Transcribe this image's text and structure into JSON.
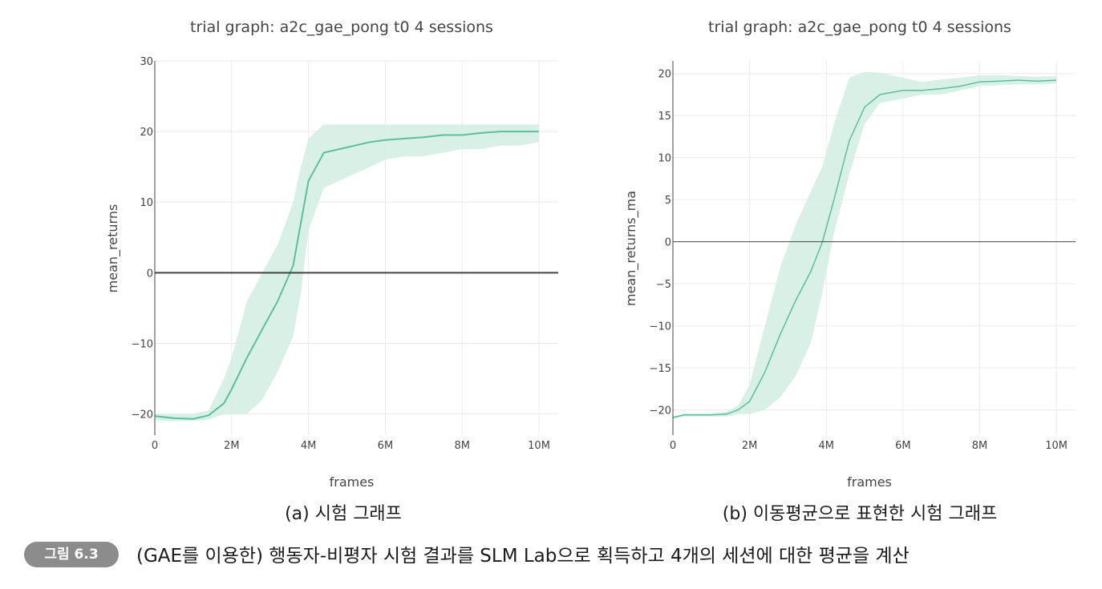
{
  "chart_data": [
    {
      "type": "line",
      "title": "trial graph: a2c_gae_pong t0 4 sessions",
      "xlabel": "frames",
      "ylabel": "mean_returns",
      "subcaption": "(a) 시험 그래프",
      "xlim": [
        0,
        10500000
      ],
      "ylim": [
        -23,
        30
      ],
      "xticks": [
        0,
        2000000,
        4000000,
        6000000,
        8000000,
        10000000
      ],
      "xtick_labels": [
        "0",
        "2M",
        "4M",
        "6M",
        "8M",
        "10M"
      ],
      "yticks": [
        -20,
        -10,
        0,
        10,
        20,
        30
      ],
      "ytick_labels": [
        "−20",
        "−10",
        "0",
        "10",
        "20",
        "30"
      ],
      "grid": true,
      "series": [
        {
          "name": "mean_returns",
          "color": "#5bbf9d",
          "band_color": "#d2ede3",
          "x": [
            0,
            500000,
            1000000,
            1400000,
            1800000,
            2000000,
            2400000,
            2800000,
            3200000,
            3600000,
            3800000,
            4000000,
            4400000,
            4800000,
            5200000,
            5600000,
            6000000,
            6500000,
            7000000,
            7500000,
            8000000,
            8500000,
            9000000,
            9500000,
            10000000
          ],
          "y": [
            -20.3,
            -20.6,
            -20.7,
            -20.2,
            -18.5,
            -16.5,
            -12,
            -8,
            -4,
            1,
            7,
            13,
            17,
            17.5,
            18,
            18.5,
            18.8,
            19,
            19.2,
            19.5,
            19.5,
            19.8,
            20,
            20,
            20
          ],
          "lower": [
            -20.9,
            -21,
            -21,
            -20.8,
            -20,
            -20,
            -20,
            -18,
            -14,
            -9,
            -3,
            6,
            12,
            13,
            14,
            15,
            16,
            16.5,
            16.5,
            17,
            17.5,
            17.5,
            18,
            18,
            18.5
          ],
          "upper": [
            -20,
            -20,
            -20,
            -19.5,
            -15,
            -12,
            -4,
            0,
            4,
            10,
            15,
            19,
            21,
            21,
            21,
            21,
            21,
            21,
            21,
            21,
            21,
            21,
            21,
            21,
            21
          ]
        }
      ]
    },
    {
      "type": "line",
      "title": "trial graph: a2c_gae_pong t0 4 sessions",
      "xlabel": "frames",
      "ylabel": "mean_returns_ma",
      "subcaption": "(b) 이동평균으로 표현한 시험 그래프",
      "xlim": [
        0,
        10500000
      ],
      "ylim": [
        -23,
        21.5
      ],
      "xticks": [
        0,
        2000000,
        4000000,
        6000000,
        8000000,
        10000000
      ],
      "xtick_labels": [
        "0",
        "2M",
        "4M",
        "6M",
        "8M",
        "10M"
      ],
      "yticks": [
        -20,
        -15,
        -10,
        -5,
        0,
        5,
        10,
        15,
        20
      ],
      "ytick_labels": [
        "−20",
        "−15",
        "−10",
        "−5",
        "0",
        "5",
        "10",
        "15",
        "20"
      ],
      "grid": true,
      "series": [
        {
          "name": "mean_returns_ma",
          "color": "#5bbf9d",
          "band_color": "#d2ede3",
          "x": [
            0,
            300000,
            600000,
            1000000,
            1400000,
            1700000,
            2000000,
            2400000,
            2800000,
            3200000,
            3600000,
            3900000,
            4200000,
            4600000,
            5000000,
            5400000,
            6000000,
            6500000,
            7000000,
            7500000,
            8000000,
            8500000,
            9000000,
            9500000,
            10000000
          ],
          "y": [
            -20.9,
            -20.6,
            -20.6,
            -20.6,
            -20.5,
            -20,
            -19,
            -15.5,
            -11,
            -7,
            -3.5,
            0,
            5,
            12,
            16,
            17.5,
            18,
            18,
            18.2,
            18.5,
            19,
            19.1,
            19.2,
            19.1,
            19.2
          ],
          "lower": [
            -21,
            -20.8,
            -20.8,
            -20.8,
            -20.8,
            -20.5,
            -20.5,
            -20,
            -18.5,
            -16,
            -12,
            -6,
            1,
            8,
            14,
            16.5,
            17,
            17.5,
            17.5,
            18,
            18.5,
            18.6,
            18.7,
            18.7,
            18.8
          ],
          "upper": [
            -20.8,
            -20.4,
            -20.4,
            -20.4,
            -20.2,
            -19.5,
            -17,
            -10,
            -3,
            2,
            6,
            9,
            14,
            19.5,
            20.2,
            20.1,
            19.5,
            19,
            19.3,
            19.5,
            19.8,
            19.8,
            19.7,
            19.6,
            19.7
          ]
        }
      ]
    }
  ],
  "figure": {
    "badge": "그림 6.3",
    "caption": "(GAE를 이용한) 행동자-비평자 시험 결과를 SLM Lab으로 획득하고 4개의 세션에 대한 평균을 계산"
  }
}
